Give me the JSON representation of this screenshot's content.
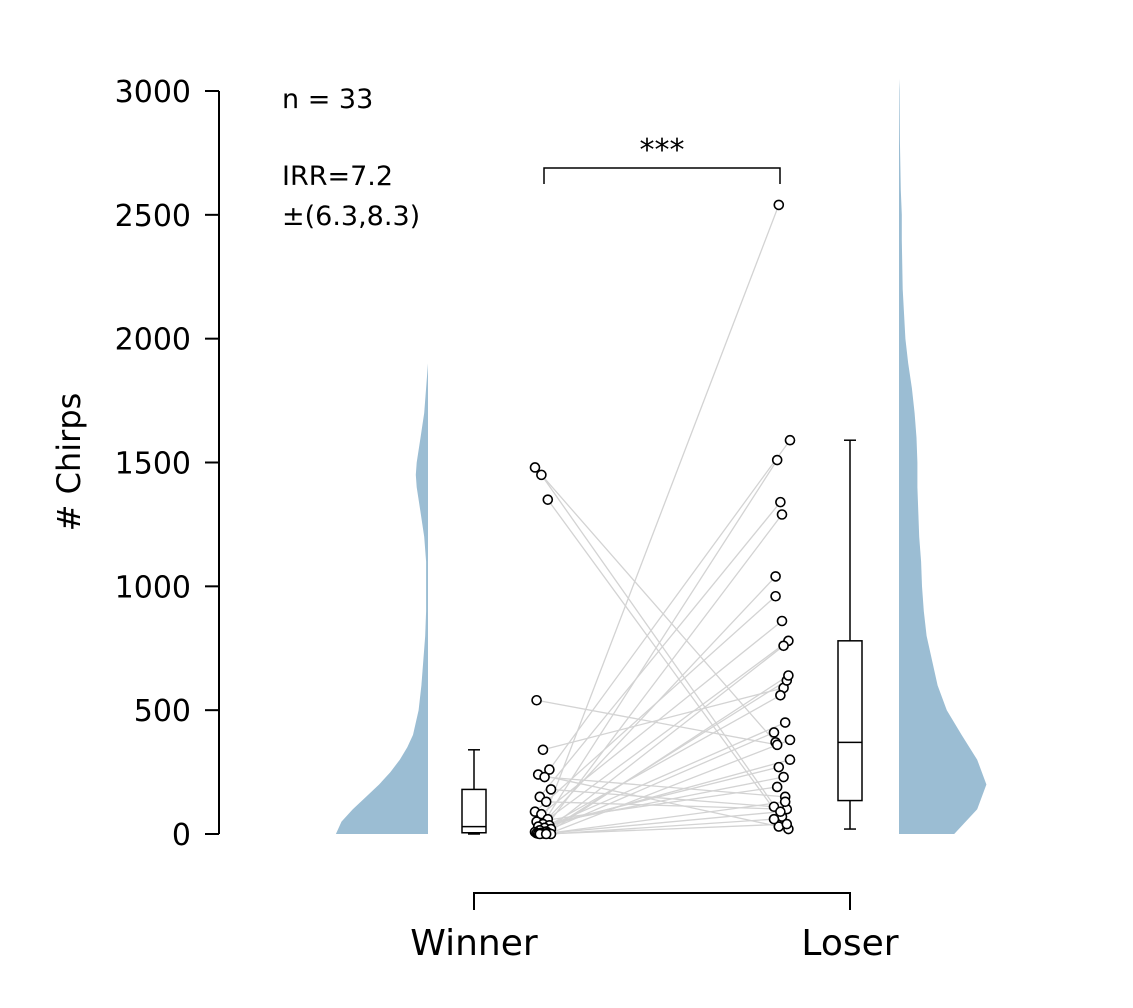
{
  "chart_data": {
    "type": "raincloud-paired",
    "ylabel": "# Chirps",
    "ylim": [
      0,
      3000
    ],
    "yticks": [
      0,
      500,
      1000,
      1500,
      2000,
      2500,
      3000
    ],
    "categories": [
      "Winner",
      "Loser"
    ],
    "annotations": {
      "n": "n = 33",
      "irr": "IRR=7.2",
      "ci": "±(6.3,8.3)",
      "significance": "***"
    },
    "colors": {
      "violin": "#9bbdd3",
      "pair_line": "#d3d3d3",
      "marker_edge": "#000000"
    },
    "pairs": [
      [
        1480,
        370
      ],
      [
        1450,
        70
      ],
      [
        1350,
        20
      ],
      [
        540,
        360
      ],
      [
        340,
        590
      ],
      [
        260,
        1590
      ],
      [
        240,
        30
      ],
      [
        230,
        150
      ],
      [
        180,
        110
      ],
      [
        150,
        1340
      ],
      [
        130,
        100
      ],
      [
        90,
        960
      ],
      [
        80,
        860
      ],
      [
        60,
        780
      ],
      [
        50,
        190
      ],
      [
        40,
        230
      ],
      [
        35,
        300
      ],
      [
        30,
        270
      ],
      [
        25,
        450
      ],
      [
        20,
        410
      ],
      [
        15,
        560
      ],
      [
        10,
        620
      ],
      [
        8,
        1040
      ],
      [
        5,
        1290
      ],
      [
        5,
        640
      ],
      [
        3,
        1510
      ],
      [
        2,
        760
      ],
      [
        2,
        380
      ],
      [
        1,
        2540
      ],
      [
        1,
        130
      ],
      [
        0,
        60
      ],
      [
        0,
        90
      ],
      [
        0,
        40
      ]
    ],
    "boxplots": {
      "Winner": {
        "whisker_low": 0,
        "q1": 5,
        "median": 30,
        "q3": 180,
        "whisker_high": 340
      },
      "Loser": {
        "whisker_low": 20,
        "q1": 135,
        "median": 370,
        "q3": 780,
        "whisker_high": 1590
      }
    },
    "kde": {
      "Winner": {
        "y": [
          0,
          50,
          100,
          150,
          200,
          250,
          300,
          350,
          400,
          500,
          600,
          700,
          800,
          900,
          1000,
          1100,
          1200,
          1300,
          1400,
          1450,
          1500,
          1600,
          1700,
          1800,
          1900
        ],
        "density": [
          0.98,
          0.92,
          0.8,
          0.66,
          0.52,
          0.4,
          0.3,
          0.22,
          0.16,
          0.1,
          0.07,
          0.05,
          0.03,
          0.02,
          0.02,
          0.02,
          0.04,
          0.08,
          0.12,
          0.13,
          0.12,
          0.08,
          0.04,
          0.02,
          0
        ]
      },
      "Loser": {
        "y": [
          0,
          100,
          200,
          300,
          400,
          500,
          600,
          700,
          800,
          900,
          1000,
          1100,
          1200,
          1300,
          1400,
          1500,
          1600,
          1700,
          1800,
          1900,
          2000,
          2200,
          2400,
          2500,
          2600,
          2800,
          3000,
          3050
        ],
        "density": [
          0.6,
          0.85,
          0.95,
          0.85,
          0.68,
          0.52,
          0.42,
          0.36,
          0.3,
          0.27,
          0.25,
          0.24,
          0.22,
          0.21,
          0.2,
          0.2,
          0.19,
          0.17,
          0.14,
          0.1,
          0.07,
          0.04,
          0.03,
          0.03,
          0.02,
          0.01,
          0.005,
          0
        ]
      }
    }
  }
}
